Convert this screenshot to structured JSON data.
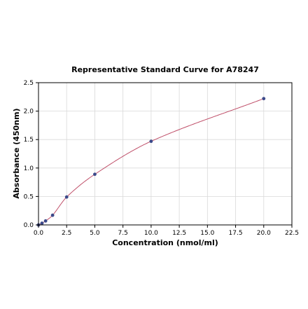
{
  "chart_data": {
    "type": "scatter",
    "title": "Representative Standard Curve for A78247",
    "xlabel": "Concentration (nmol/ml)",
    "ylabel": "Absorbance (450nm)",
    "xlim": [
      0,
      22.5
    ],
    "ylim": [
      0,
      2.5
    ],
    "xticks": [
      "0.0",
      "2.5",
      "5.0",
      "7.5",
      "10.0",
      "12.5",
      "15.0",
      "17.5",
      "20.0",
      "22.5"
    ],
    "yticks": [
      "0.0",
      "0.5",
      "1.0",
      "1.5",
      "2.0",
      "2.5"
    ],
    "grid": true,
    "point_color": "#3b4a8a",
    "curve_color": "#c0506a",
    "points": [
      {
        "x": 0.0,
        "y": 0.0
      },
      {
        "x": 0.31,
        "y": 0.03
      },
      {
        "x": 0.63,
        "y": 0.07
      },
      {
        "x": 1.25,
        "y": 0.17
      },
      {
        "x": 2.5,
        "y": 0.49
      },
      {
        "x": 5.0,
        "y": 0.89
      },
      {
        "x": 10.0,
        "y": 1.47
      },
      {
        "x": 20.0,
        "y": 2.22
      }
    ]
  }
}
